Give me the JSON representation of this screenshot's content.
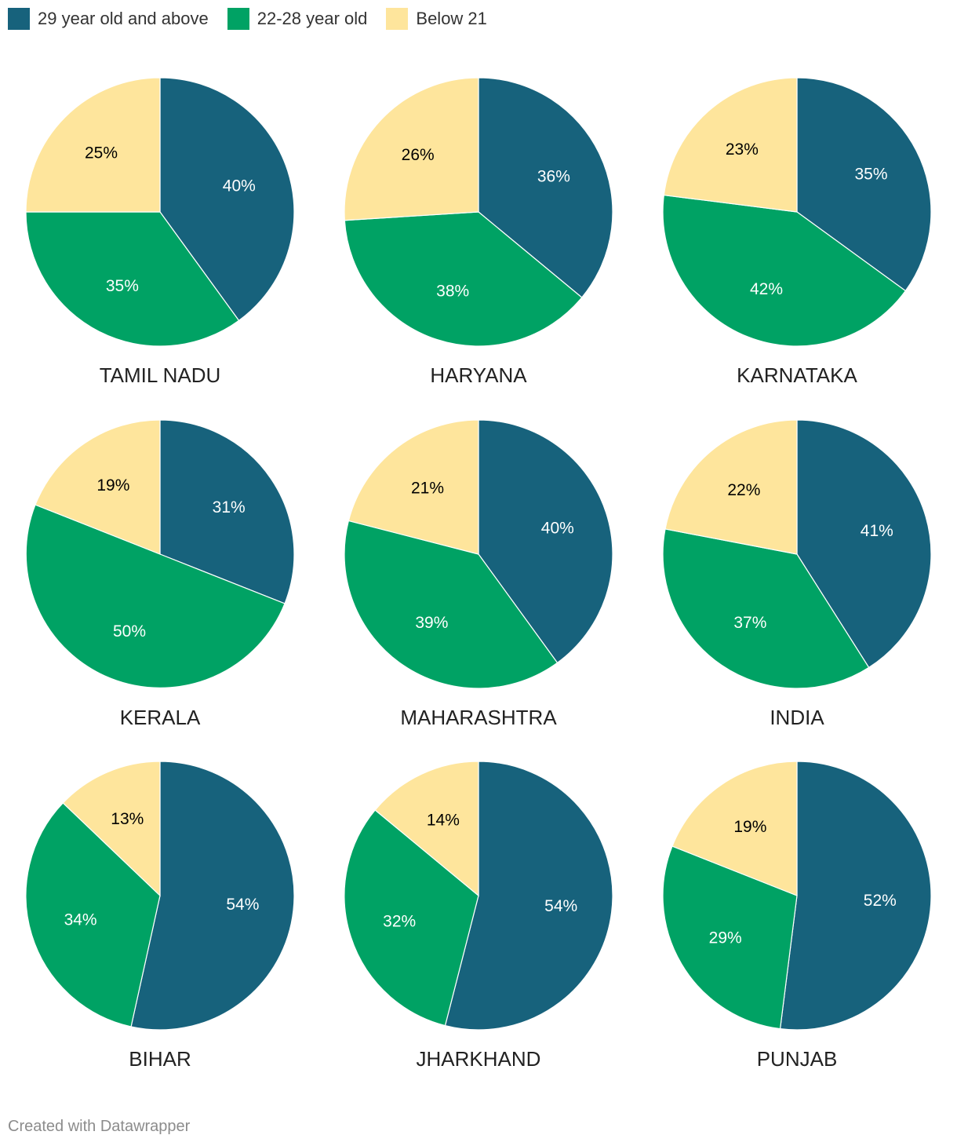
{
  "chart_data": {
    "type": "pie",
    "series_names": [
      "29 year old and above",
      "22-28 year old",
      "Below 21"
    ],
    "colors": [
      "#17627c",
      "#00a264",
      "#fee59c"
    ],
    "label_colors": [
      "#ffffff",
      "#ffffff",
      "#000000"
    ],
    "charts": [
      {
        "name": "TAMIL NADU",
        "values": [
          40,
          35,
          25
        ],
        "labels": [
          "40%",
          "35%",
          "25%"
        ]
      },
      {
        "name": "HARYANA",
        "values": [
          36,
          38,
          26
        ],
        "labels": [
          "36%",
          "38%",
          "26%"
        ]
      },
      {
        "name": "KARNATAKA",
        "values": [
          35,
          42,
          23
        ],
        "labels": [
          "35%",
          "42%",
          "23%"
        ]
      },
      {
        "name": "KERALA",
        "values": [
          31,
          50,
          19
        ],
        "labels": [
          "31%",
          "50%",
          "19%"
        ]
      },
      {
        "name": "MAHARASHTRA",
        "values": [
          40,
          39,
          21
        ],
        "labels": [
          "40%",
          "39%",
          "21%"
        ]
      },
      {
        "name": "INDIA",
        "values": [
          41,
          37,
          22
        ],
        "labels": [
          "41%",
          "37%",
          "22%"
        ]
      },
      {
        "name": "BIHAR",
        "values": [
          54,
          34,
          13
        ],
        "labels": [
          "54%",
          "34%",
          "13%"
        ]
      },
      {
        "name": "JHARKHAND",
        "values": [
          54,
          32,
          14
        ],
        "labels": [
          "54%",
          "32%",
          "14%"
        ]
      },
      {
        "name": "PUNJAB",
        "values": [
          52,
          29,
          19
        ],
        "labels": [
          "52%",
          "29%",
          "19%"
        ]
      }
    ]
  },
  "legend": {
    "items": [
      {
        "label": "29 year old and above",
        "color": "#17627c"
      },
      {
        "label": "22-28 year old",
        "color": "#00a264"
      },
      {
        "label": "Below 21",
        "color": "#fee59c"
      }
    ]
  },
  "footer": {
    "text": "Created with Datawrapper"
  }
}
